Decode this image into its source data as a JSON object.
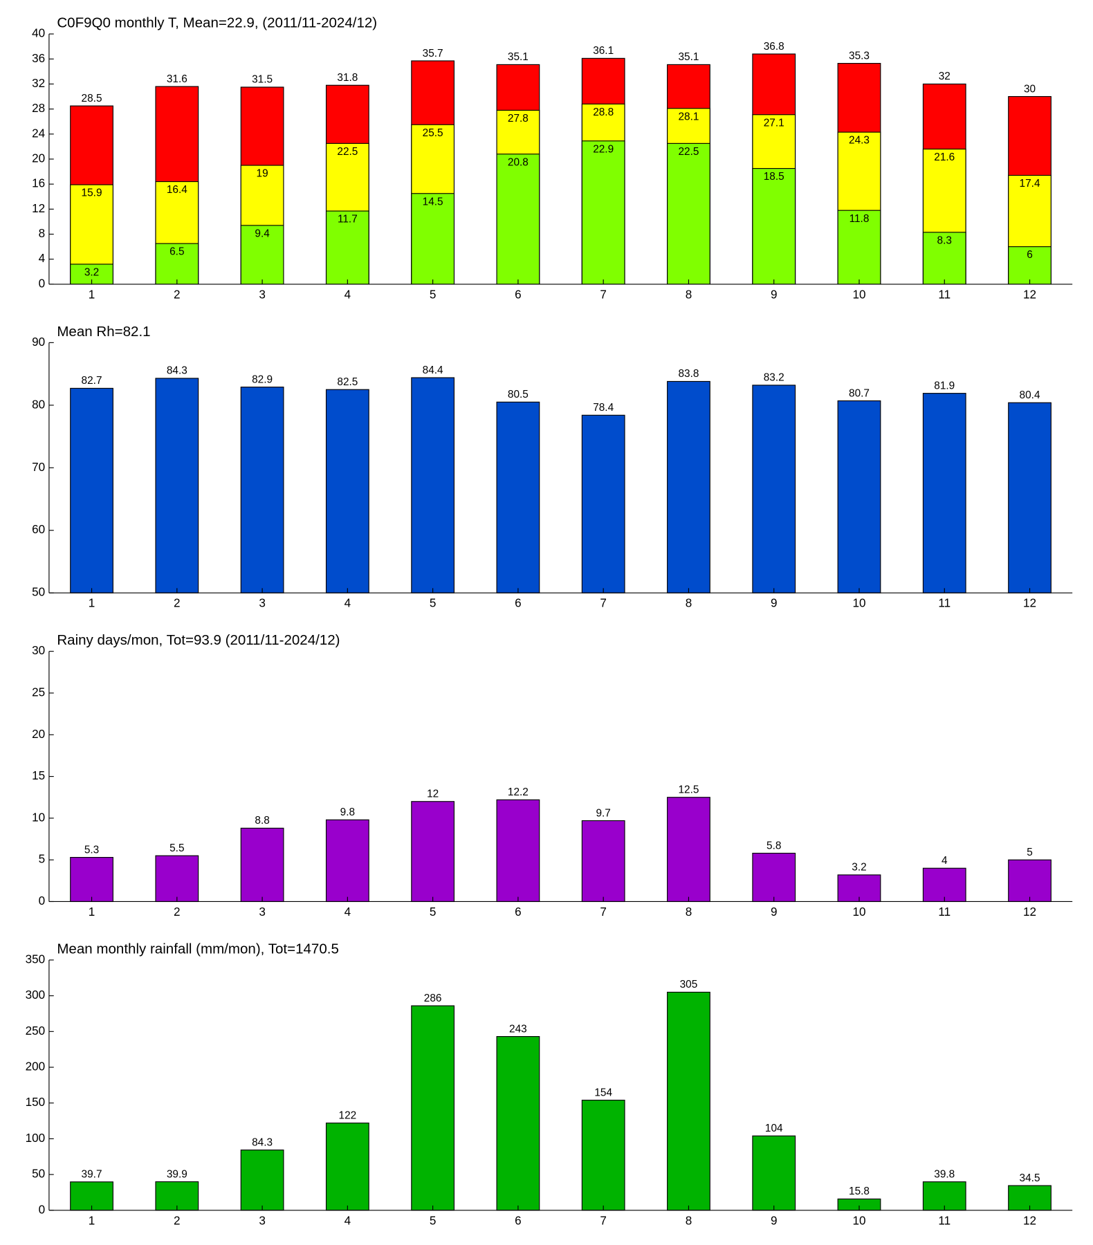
{
  "chart_data": [
    {
      "type": "overlay_bar",
      "title": "C0F9Q0 monthly T, Mean=22.9, (2011/11-2024/12)",
      "categories": [
        "1",
        "2",
        "3",
        "4",
        "5",
        "6",
        "7",
        "8",
        "9",
        "10",
        "11",
        "12"
      ],
      "series": [
        {
          "color": "#ff0000",
          "values": [
            28.5,
            31.6,
            31.5,
            31.8,
            35.7,
            35.1,
            36.1,
            35.1,
            36.8,
            35.3,
            32,
            30
          ]
        },
        {
          "color": "#ffff00",
          "values": [
            15.9,
            16.4,
            19,
            22.5,
            25.5,
            27.8,
            28.8,
            28.1,
            27.1,
            24.3,
            21.6,
            17.4
          ]
        },
        {
          "color": "#80ff00",
          "values": [
            3.2,
            6.5,
            9.4,
            11.7,
            14.5,
            20.8,
            22.9,
            22.5,
            18.5,
            11.8,
            8.3,
            6
          ]
        }
      ],
      "ylim": [
        0,
        40
      ],
      "yticks": [
        0,
        4,
        8,
        12,
        16,
        20,
        24,
        28,
        32,
        36,
        40
      ]
    },
    {
      "type": "bar",
      "title": "Mean Rh=82.1",
      "categories": [
        "1",
        "2",
        "3",
        "4",
        "5",
        "6",
        "7",
        "8",
        "9",
        "10",
        "11",
        "12"
      ],
      "color": "#004ccc",
      "values": [
        82.7,
        84.3,
        82.9,
        82.5,
        84.4,
        80.5,
        78.4,
        83.8,
        83.2,
        80.7,
        81.9,
        80.4
      ],
      "ylim": [
        50,
        90
      ],
      "yticks": [
        50,
        60,
        70,
        80,
        90
      ]
    },
    {
      "type": "bar",
      "title": "Rainy days/mon, Tot=93.9 (2011/11-2024/12)",
      "categories": [
        "1",
        "2",
        "3",
        "4",
        "5",
        "6",
        "7",
        "8",
        "9",
        "10",
        "11",
        "12"
      ],
      "color": "#9900cc",
      "values": [
        5.3,
        5.5,
        8.8,
        9.8,
        12,
        12.2,
        9.7,
        12.5,
        5.8,
        3.2,
        4,
        5
      ],
      "ylim": [
        0,
        30
      ],
      "yticks": [
        0,
        5,
        10,
        15,
        20,
        25,
        30
      ]
    },
    {
      "type": "bar",
      "title": "Mean monthly rainfall (mm/mon), Tot=1470.5",
      "categories": [
        "1",
        "2",
        "3",
        "4",
        "5",
        "6",
        "7",
        "8",
        "9",
        "10",
        "11",
        "12"
      ],
      "color": "#00b300",
      "values": [
        39.7,
        39.9,
        84.3,
        122,
        286,
        243,
        154,
        305,
        104,
        15.8,
        39.8,
        34.5
      ],
      "ylim": [
        0,
        350
      ],
      "yticks": [
        0,
        50,
        100,
        150,
        200,
        250,
        300,
        350
      ]
    }
  ]
}
